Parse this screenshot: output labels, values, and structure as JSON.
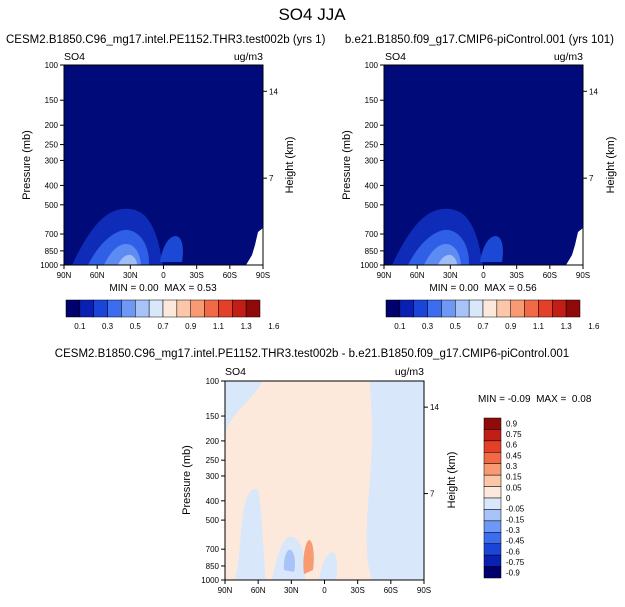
{
  "page_title": "SO4 JJA",
  "colors": {
    "top_palette": [
      "#00006e",
      "#0a1fb4",
      "#1a45d8",
      "#3c6cf0",
      "#6e98f5",
      "#a7c3f8",
      "#d9e7fb",
      "#fde9dc",
      "#fcc7a8",
      "#f89a72",
      "#f26a45",
      "#e3402a",
      "#c11f16",
      "#900a0a"
    ],
    "diff_palette": [
      "#00006e",
      "#0a1fb4",
      "#1a45d8",
      "#3c6cf0",
      "#6e98f5",
      "#a7c3f8",
      "#d9e7fb",
      "#fde9dc",
      "#fcc7a8",
      "#f89a72",
      "#f26a45",
      "#e3402a",
      "#c11f16",
      "#900a0a"
    ]
  },
  "chart_data": [
    {
      "type": "heatmap",
      "title": "CESM2.B1850.C96_mg17.intel.PE1152.THR3.test002b (yrs 1)",
      "corner_left": "SO4",
      "corner_right": "ug/m3",
      "ylabel": "Pressure (mb)",
      "ylabel_right": "Height (km)",
      "x_ticks": [
        "90N",
        "60N",
        "30N",
        "0",
        "30S",
        "60S",
        "90S"
      ],
      "y_ticks": [
        "100",
        "150",
        "200",
        "250",
        "300",
        "400",
        "500",
        "700",
        "850",
        "1000"
      ],
      "y_right_ticks": [
        "14",
        "7"
      ],
      "minmax": "MIN = 0.00  MAX = 0.53",
      "colorbar_labels": [
        "0.1",
        "0.3",
        "0.5",
        "0.7",
        "0.9",
        "1.1",
        "1.3",
        "1.6"
      ]
    },
    {
      "type": "heatmap",
      "title": "b.e21.B1850.f09_g17.CMIP6-piControl.001 (yrs 101)",
      "corner_left": "SO4",
      "corner_right": "ug/m3",
      "ylabel": "Pressure (mb)",
      "ylabel_right": "Height (km)",
      "x_ticks": [
        "90N",
        "60N",
        "30N",
        "0",
        "30S",
        "60S",
        "90S"
      ],
      "y_ticks": [
        "100",
        "150",
        "200",
        "250",
        "300",
        "400",
        "500",
        "700",
        "850",
        "1000"
      ],
      "y_right_ticks": [
        "14",
        "7"
      ],
      "minmax": "MIN = 0.00  MAX = 0.56",
      "colorbar_labels": [
        "0.1",
        "0.3",
        "0.5",
        "0.7",
        "0.9",
        "1.1",
        "1.3",
        "1.6"
      ]
    },
    {
      "type": "heatmap",
      "title": "CESM2.B1850.C96_mg17.intel.PE1152.THR3.test002b - b.e21.B1850.f09_g17.CMIP6-piControl.001",
      "corner_left": "SO4",
      "corner_right": "ug/m3",
      "ylabel": "Pressure (mb)",
      "ylabel_right": "Height (km)",
      "x_ticks": [
        "90N",
        "60N",
        "30N",
        "0",
        "30S",
        "60S",
        "90S"
      ],
      "y_ticks": [
        "100",
        "150",
        "200",
        "250",
        "300",
        "400",
        "500",
        "700",
        "850",
        "1000"
      ],
      "y_right_ticks": [
        "14",
        "7"
      ],
      "minmax": "MIN = -0.09  MAX =  0.08",
      "colorbar_labels": [
        "0.9",
        "0.75",
        "0.6",
        "0.45",
        "0.3",
        "0.15",
        "0.05",
        "0",
        "-0.05",
        "-0.15",
        "-0.3",
        "-0.45",
        "-0.6",
        "-0.75",
        "-0.9"
      ]
    }
  ]
}
